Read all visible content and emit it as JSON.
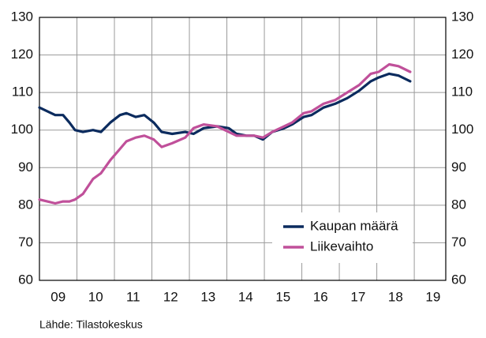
{
  "chart_data": {
    "type": "line",
    "source": "Lähde: Tilastokeskus",
    "x": [
      2009.0,
      2009.21,
      2009.42,
      2009.63,
      2009.8,
      2009.95,
      2010.16,
      2010.43,
      2010.64,
      2010.89,
      2011.15,
      2011.32,
      2011.57,
      2011.8,
      2012.05,
      2012.26,
      2012.54,
      2012.89,
      2013.11,
      2013.38,
      2013.74,
      2014.05,
      2014.26,
      2014.52,
      2014.73,
      2014.96,
      2015.21,
      2015.53,
      2015.74,
      2016.05,
      2016.26,
      2016.58,
      2016.89,
      2017.21,
      2017.53,
      2017.84,
      2018.05,
      2018.33,
      2018.58,
      2018.89
    ],
    "series": [
      {
        "name": "Kaupan määrä",
        "color": "#0b2b5e",
        "values": [
          106,
          105,
          104,
          104,
          102,
          100,
          99.5,
          100,
          99.5,
          102,
          104,
          104.5,
          103.5,
          104,
          102,
          99.5,
          99,
          99.5,
          99,
          100.5,
          101,
          100.5,
          99,
          98.5,
          98.5,
          97.5,
          99.5,
          100.5,
          101.5,
          103.5,
          104,
          106,
          107,
          108.5,
          110.5,
          113,
          114,
          115,
          114.5,
          113
        ]
      },
      {
        "name": "Liikevaihto",
        "color": "#c0509a",
        "values": [
          81.5,
          81,
          80.5,
          81,
          81,
          81.5,
          83,
          87,
          88.5,
          92,
          95,
          97,
          98,
          98.5,
          97.5,
          95.5,
          96.5,
          98,
          100.5,
          101.5,
          101,
          99.5,
          98.5,
          98.5,
          98.5,
          98,
          99.5,
          101,
          102,
          104.5,
          105,
          107,
          108,
          110,
          112,
          115,
          115.5,
          117.5,
          117,
          115.5
        ]
      }
    ],
    "xlim": [
      2009,
      2019.84
    ],
    "xticks": [
      {
        "value": 2009.5,
        "label": "09"
      },
      {
        "value": 2010.5,
        "label": "10"
      },
      {
        "value": 2011.5,
        "label": "11"
      },
      {
        "value": 2012.5,
        "label": "12"
      },
      {
        "value": 2013.5,
        "label": "13"
      },
      {
        "value": 2014.5,
        "label": "14"
      },
      {
        "value": 2015.5,
        "label": "15"
      },
      {
        "value": 2016.5,
        "label": "16"
      },
      {
        "value": 2017.5,
        "label": "17"
      },
      {
        "value": 2018.5,
        "label": "18"
      },
      {
        "value": 2019.5,
        "label": "19"
      }
    ],
    "xgrid": [
      2010,
      2011,
      2012,
      2013,
      2014,
      2015,
      2016,
      2017,
      2018,
      2019
    ],
    "ylim": [
      60,
      130
    ],
    "yticks": [
      60,
      70,
      80,
      90,
      100,
      110,
      120,
      130
    ],
    "y2lim": [
      60,
      130
    ],
    "y2ticks": [
      60,
      70,
      80,
      90,
      100,
      110,
      120,
      130
    ],
    "grid": true,
    "legend": "lower right"
  }
}
